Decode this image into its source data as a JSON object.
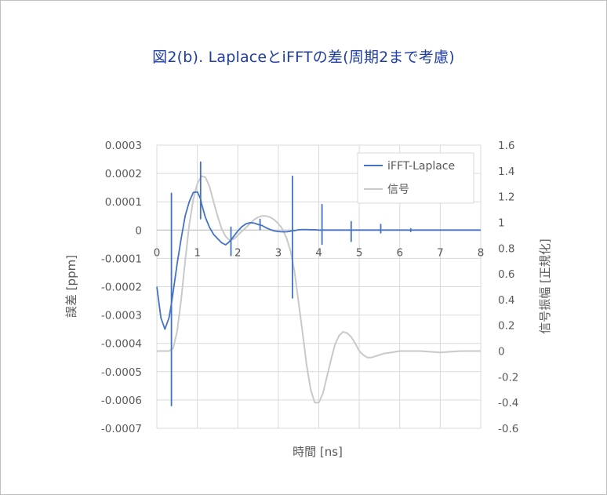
{
  "chart_data": {
    "type": "line",
    "title": "図2(b). LaplaceとiFFTの差(周期2まで考慮)",
    "xlabel": "時間 [ns]",
    "ylabel": "誤差 [ppm]",
    "y2label": "信号振幅 [正規化]",
    "xlim": [
      0,
      8
    ],
    "ylim": [
      -0.0007,
      0.0003
    ],
    "y2lim": [
      -0.6,
      1.6
    ],
    "x_ticks": [
      "0",
      "1",
      "2",
      "3",
      "4",
      "5",
      "6",
      "7",
      "8"
    ],
    "y_ticks": [
      "0.0003",
      "0.0002",
      "0.0001",
      "0",
      "-0.0001",
      "-0.0002",
      "-0.0003",
      "-0.0004",
      "-0.0005",
      "-0.0006",
      "-0.0007"
    ],
    "y2_ticks": [
      "1.6",
      "1.4",
      "1.2",
      "1",
      "0.8",
      "0.6",
      "0.4",
      "0.2",
      "0",
      "-0.2",
      "-0.4",
      "-0.6"
    ],
    "grid": true,
    "legend_position": "top-right",
    "series": [
      {
        "name": "iFFT-Laplace",
        "axis": "left",
        "color": "#4472c4",
        "x": [
          0,
          0.1,
          0.2,
          0.3,
          0.36,
          0.36,
          0.36,
          0.36,
          0.4,
          0.5,
          0.6,
          0.7,
          0.8,
          0.9,
          1.0,
          1.05,
          1.08,
          1.08,
          1.08,
          1.08,
          1.1,
          1.2,
          1.3,
          1.4,
          1.5,
          1.6,
          1.7,
          1.8,
          1.83,
          1.83,
          1.83,
          1.83,
          1.9,
          2.0,
          2.1,
          2.2,
          2.3,
          2.4,
          2.5,
          2.55,
          2.55,
          2.55,
          2.55,
          2.6,
          2.7,
          2.8,
          2.9,
          3.0,
          3.1,
          3.2,
          3.3,
          3.35,
          3.35,
          3.35,
          3.35,
          3.4,
          3.5,
          3.6,
          3.7,
          3.8,
          3.9,
          4.0,
          4.08,
          4.08,
          4.08,
          4.08,
          4.2,
          4.4,
          4.6,
          4.8,
          4.8,
          4.8,
          4.8,
          5.0,
          5.2,
          5.4,
          5.53,
          5.53,
          5.53,
          5.53,
          5.7,
          6.0,
          6.27,
          6.27,
          6.27,
          6.27,
          6.5,
          7.0,
          8.0
        ],
        "values": [
          -0.0002,
          -0.00031,
          -0.00035,
          -0.00031,
          -0.00026,
          0.00013,
          -0.00062,
          -0.00026,
          -0.00022,
          -0.00012,
          -3e-05,
          5e-05,
          0.0001,
          0.000133,
          0.000135,
          0.00012,
          0.00011,
          0.00024,
          4e-05,
          0.00011,
          9.5e-05,
          4.5e-05,
          1e-05,
          -1.5e-05,
          -3e-05,
          -4.5e-05,
          -5.2e-05,
          -4e-05,
          -3.5e-05,
          1e-05,
          -9e-05,
          -3.5e-05,
          -2.2e-05,
          -3e-06,
          1.2e-05,
          2.2e-05,
          2.6e-05,
          2.5e-05,
          2e-05,
          1.8e-05,
          3.8e-05,
          2e-06,
          1.8e-05,
          1.6e-05,
          8e-06,
          2e-06,
          -3e-06,
          -5e-06,
          -6e-06,
          -6e-06,
          -4e-06,
          -2e-06,
          0.00019,
          -0.00024,
          -2e-06,
          -2e-06,
          1e-06,
          2e-06,
          2e-06,
          1e-06,
          1e-06,
          0.0,
          0.0,
          9e-05,
          -5e-05,
          0.0,
          0.0,
          0.0,
          0.0,
          0.0,
          3e-05,
          -4e-05,
          0.0,
          0.0,
          0.0,
          0.0,
          0.0,
          2e-05,
          -1e-05,
          0.0,
          0.0,
          0.0,
          0.0,
          5e-06,
          -5e-06,
          0.0,
          0.0,
          0.0,
          0.0
        ]
      },
      {
        "name": "信号",
        "axis": "right",
        "color": "#c9c9c9",
        "x": [
          0,
          0.3,
          0.4,
          0.5,
          0.6,
          0.7,
          0.8,
          0.9,
          1.0,
          1.1,
          1.2,
          1.3,
          1.4,
          1.5,
          1.6,
          1.7,
          1.8,
          1.9,
          2.0,
          2.1,
          2.2,
          2.3,
          2.4,
          2.5,
          2.6,
          2.7,
          2.8,
          2.9,
          3.0,
          3.1,
          3.2,
          3.3,
          3.4,
          3.5,
          3.6,
          3.7,
          3.8,
          3.9,
          4.0,
          4.1,
          4.2,
          4.3,
          4.4,
          4.5,
          4.6,
          4.7,
          4.8,
          4.9,
          5.0,
          5.1,
          5.2,
          5.3,
          5.4,
          5.5,
          5.6,
          5.8,
          6.0,
          6.2,
          6.5,
          7.0,
          7.5,
          8.0
        ],
        "values": [
          0.0,
          0.0,
          0.02,
          0.15,
          0.4,
          0.7,
          0.98,
          1.18,
          1.3,
          1.36,
          1.35,
          1.28,
          1.16,
          1.05,
          0.95,
          0.89,
          0.86,
          0.87,
          0.9,
          0.93,
          0.96,
          0.99,
          1.02,
          1.04,
          1.05,
          1.05,
          1.04,
          1.02,
          0.99,
          0.95,
          0.88,
          0.78,
          0.62,
          0.38,
          0.14,
          -0.11,
          -0.3,
          -0.4,
          -0.4,
          -0.33,
          -0.2,
          -0.07,
          0.05,
          0.12,
          0.15,
          0.14,
          0.11,
          0.06,
          0.0,
          -0.03,
          -0.05,
          -0.05,
          -0.04,
          -0.03,
          -0.02,
          -0.01,
          0.0,
          0.0,
          0.0,
          -0.01,
          0.0,
          0.0
        ]
      }
    ]
  }
}
